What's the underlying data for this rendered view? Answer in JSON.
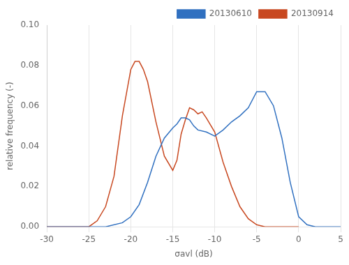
{
  "chart_data": {
    "type": "line",
    "xlabel": "σavl (dB)",
    "ylabel": "relative frequency (-)",
    "xlim": [
      -30,
      5
    ],
    "ylim": [
      0,
      0.1
    ],
    "xticks": [
      -30,
      -25,
      -20,
      -15,
      -10,
      -5,
      0,
      5
    ],
    "yticks": [
      {
        "value": 0,
        "label": "0.00"
      },
      {
        "value": 0.02,
        "label": "0.02"
      },
      {
        "value": 0.04,
        "label": "0.04"
      },
      {
        "value": 0.06,
        "label": "0.06"
      },
      {
        "value": 0.08,
        "label": "0.08"
      },
      {
        "value": 0.1,
        "label": "0.10"
      }
    ],
    "grid": "x",
    "legend": "upper right",
    "series": [
      {
        "name": "20130610",
        "color": "#3070C0",
        "x": [
          -30,
          -25,
          -23,
          -21,
          -20,
          -19,
          -18,
          -17,
          -16,
          -15,
          -14.5,
          -14,
          -13.5,
          -13,
          -12.5,
          -12,
          -11,
          -10,
          -9,
          -8,
          -7,
          -6,
          -5,
          -4,
          -3,
          -2,
          -1,
          0,
          1,
          2,
          3,
          5
        ],
        "values": [
          0.0,
          0.0,
          0.0,
          0.002,
          0.005,
          0.011,
          0.022,
          0.035,
          0.044,
          0.049,
          0.051,
          0.054,
          0.054,
          0.053,
          0.05,
          0.048,
          0.047,
          0.045,
          0.048,
          0.052,
          0.055,
          0.059,
          0.067,
          0.067,
          0.06,
          0.044,
          0.022,
          0.005,
          0.001,
          0.0,
          0.0,
          0.0
        ]
      },
      {
        "name": "20130914",
        "color": "#C84820",
        "x": [
          -30,
          -26,
          -25,
          -24,
          -23,
          -22,
          -21,
          -20,
          -19.5,
          -19,
          -18.5,
          -18,
          -17,
          -16,
          -15,
          -14.5,
          -14,
          -13.5,
          -13,
          -12.5,
          -12,
          -11.5,
          -11,
          -10,
          -9,
          -8,
          -7,
          -6,
          -5,
          -4,
          -3,
          -2,
          0
        ],
        "values": [
          0.0,
          0.0,
          0.0,
          0.003,
          0.01,
          0.025,
          0.055,
          0.078,
          0.082,
          0.082,
          0.078,
          0.072,
          0.052,
          0.035,
          0.028,
          0.033,
          0.046,
          0.053,
          0.059,
          0.058,
          0.056,
          0.057,
          0.054,
          0.047,
          0.032,
          0.02,
          0.01,
          0.004,
          0.001,
          0.0,
          0.0,
          0.0,
          0.0
        ]
      }
    ]
  }
}
